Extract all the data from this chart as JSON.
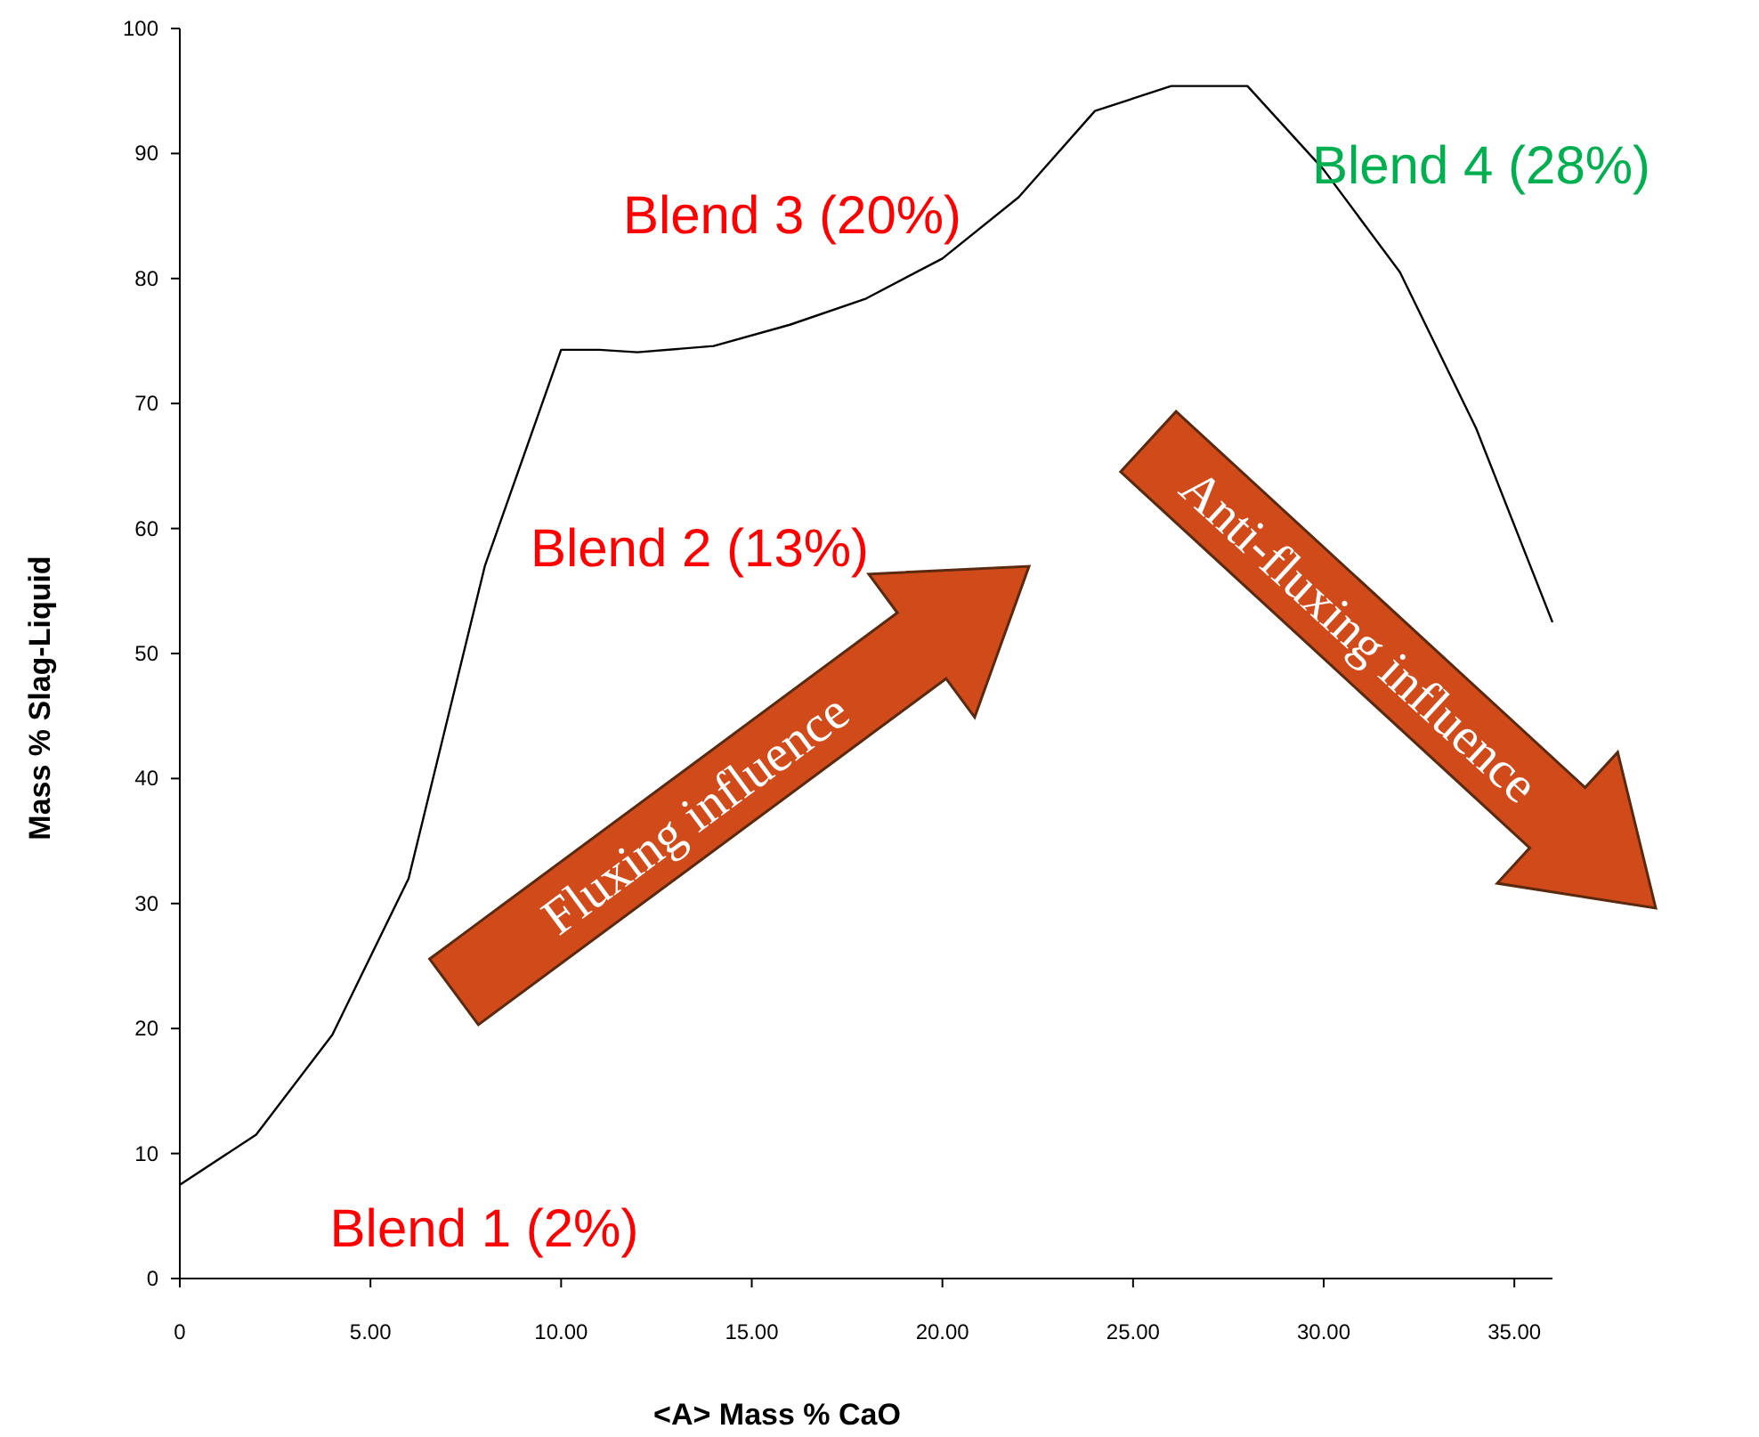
{
  "chart_data": {
    "type": "line",
    "xlabel": "<A> Mass % CaO",
    "ylabel": "Mass % Slag-Liquid",
    "x": [
      0,
      2,
      4,
      6,
      8,
      10,
      11,
      12,
      14,
      16,
      18,
      20,
      22,
      24,
      26,
      28,
      30,
      32,
      34,
      36
    ],
    "series": [
      {
        "color": "#000000",
        "values": [
          7.5,
          11.5,
          19.5,
          32,
          57,
          74.3,
          74.3,
          74.1,
          74.6,
          76.3,
          78.4,
          81.6,
          86.5,
          93.4,
          95.4,
          95.4,
          88.7,
          80.5,
          68,
          52.5
        ]
      }
    ],
    "xlim": [
      0,
      36
    ],
    "ylim": [
      0,
      100
    ],
    "xticks": [
      {
        "value": 0,
        "label": "0"
      },
      {
        "value": 5,
        "label": "5.00"
      },
      {
        "value": 10,
        "label": "10.00"
      },
      {
        "value": 15,
        "label": "15.00"
      },
      {
        "value": 20,
        "label": "20.00"
      },
      {
        "value": 25,
        "label": "25.00"
      },
      {
        "value": 30,
        "label": "30.00"
      },
      {
        "value": 35,
        "label": "35.00"
      }
    ],
    "yticks": [
      0,
      10,
      20,
      30,
      40,
      50,
      60,
      70,
      80,
      90,
      100
    ],
    "grid": false,
    "marker": "none",
    "line_style": "solid",
    "annotations": [
      "Blend 1 (2%)",
      "Blend 2 (13%)",
      "Blend 3 (20%)",
      "Blend 4 (28%)",
      "Fluxing influence",
      "Anti-fluxing influence"
    ]
  }
}
